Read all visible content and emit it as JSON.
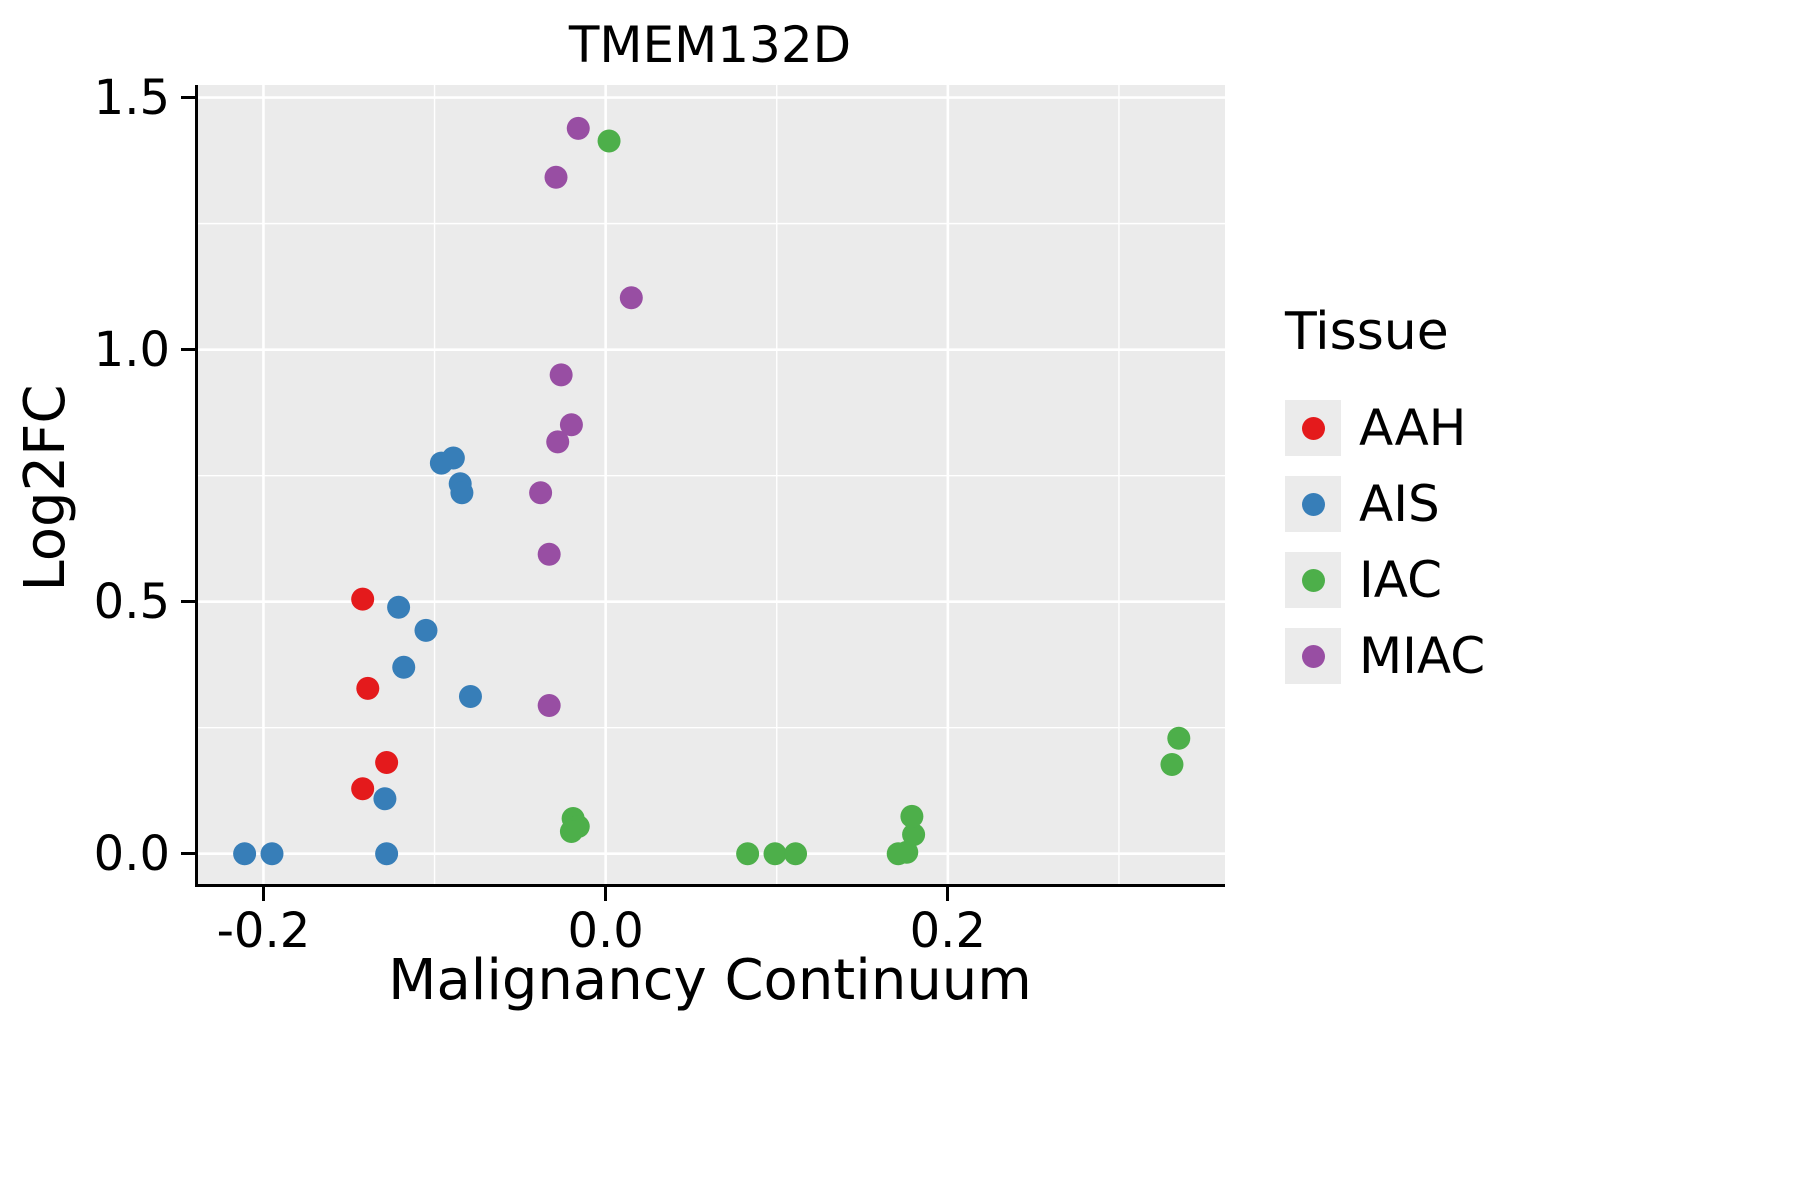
{
  "chart_data": {
    "type": "scatter",
    "title": "TMEM132D",
    "xlabel": "Malignancy Continuum",
    "ylabel": "Log2FC",
    "xlim": [
      -0.24,
      0.362
    ],
    "ylim": [
      -0.066,
      1.525
    ],
    "xticks": [
      -0.2,
      0.0,
      0.2
    ],
    "xtick_labels": [
      "-0.2",
      "0.0",
      "0.2"
    ],
    "yticks": [
      0.0,
      0.5,
      1.0,
      1.5
    ],
    "ytick_labels": [
      "0.0",
      "0.5",
      "1.0",
      "1.5"
    ],
    "xticks_minor": [
      -0.1,
      0.1,
      0.3
    ],
    "yticks_minor": [
      0.25,
      0.75,
      1.25
    ],
    "grid": true,
    "legend_title": "Tissue",
    "legend_position": "right",
    "panel_background": "#EBEBEB",
    "grid_color": "#FFFFFF",
    "axis_color": "#000000",
    "point_radius": 11.5,
    "series": [
      {
        "name": "AAH",
        "color": "#E41A1C",
        "points": [
          [
            -0.142,
            0.505
          ],
          [
            -0.139,
            0.328
          ],
          [
            -0.128,
            0.181
          ],
          [
            -0.142,
            0.129
          ]
        ]
      },
      {
        "name": "AIS",
        "color": "#377EB8",
        "points": [
          [
            -0.211,
            0.0
          ],
          [
            -0.195,
            0.0
          ],
          [
            -0.129,
            0.109
          ],
          [
            -0.128,
            0.0
          ],
          [
            -0.121,
            0.489
          ],
          [
            -0.118,
            0.37
          ],
          [
            -0.105,
            0.443
          ],
          [
            -0.096,
            0.775
          ],
          [
            -0.089,
            0.785
          ],
          [
            -0.085,
            0.734
          ],
          [
            -0.084,
            0.716
          ],
          [
            -0.079,
            0.312
          ]
        ]
      },
      {
        "name": "IAC",
        "color": "#4DAF4A",
        "points": [
          [
            0.002,
            1.414
          ],
          [
            -0.019,
            0.07
          ],
          [
            -0.016,
            0.054
          ],
          [
            -0.02,
            0.044
          ],
          [
            0.083,
            0.0
          ],
          [
            0.099,
            0.0
          ],
          [
            0.111,
            0.0
          ],
          [
            0.171,
            0.0
          ],
          [
            0.176,
            0.003
          ],
          [
            0.18,
            0.038
          ],
          [
            0.179,
            0.074
          ],
          [
            0.331,
            0.177
          ],
          [
            0.335,
            0.229
          ]
        ]
      },
      {
        "name": "MIAC",
        "color": "#984EA3",
        "points": [
          [
            -0.016,
            1.439
          ],
          [
            -0.029,
            1.342
          ],
          [
            0.015,
            1.103
          ],
          [
            -0.026,
            0.95
          ],
          [
            -0.02,
            0.851
          ],
          [
            -0.028,
            0.817
          ],
          [
            -0.038,
            0.716
          ],
          [
            -0.033,
            0.594
          ],
          [
            -0.033,
            0.294
          ]
        ]
      }
    ]
  }
}
